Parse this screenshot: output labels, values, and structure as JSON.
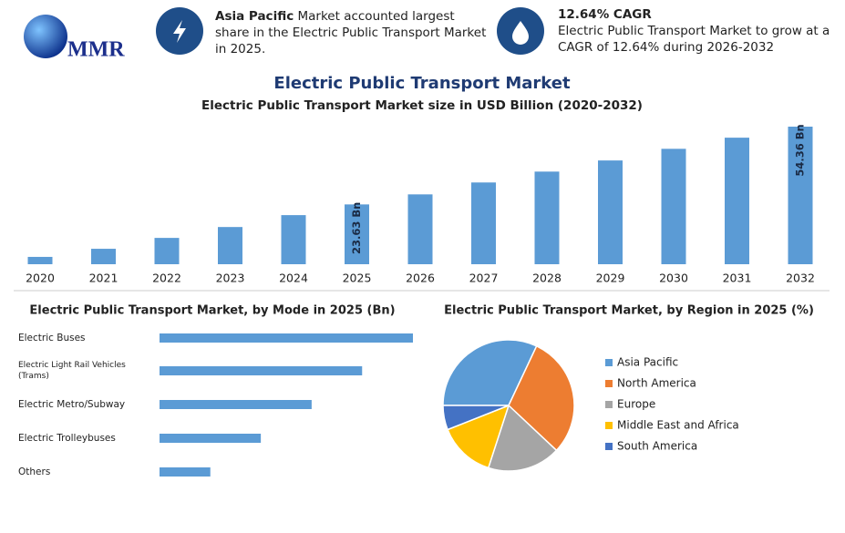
{
  "header": {
    "logo": "MMR",
    "highlight_1": {
      "bold": "Asia Pacific",
      "text": " Market accounted largest share in the Electric Public Transport Market in 2025."
    },
    "highlight_2": {
      "title": "12.64% CAGR",
      "text": "Electric Public Transport Market to grow at a CAGR of 12.64% during 2026-2032"
    }
  },
  "chart_data": [
    {
      "type": "bar",
      "title": "Electric Public Transport Market",
      "subtitle": "Electric Public Transport Market size in USD Billion (2020-2032)",
      "categories": [
        "2020",
        "2021",
        "2022",
        "2023",
        "2024",
        "2025",
        "2026",
        "2027",
        "2028",
        "2029",
        "2030",
        "2031",
        "2032"
      ],
      "values": [
        2.9,
        6.1,
        10.4,
        14.7,
        19.4,
        23.63,
        27.6,
        32.3,
        36.6,
        41.0,
        45.6,
        50.0,
        54.36
      ],
      "value_labels": [
        null,
        null,
        null,
        null,
        null,
        "23.63 Bn",
        null,
        null,
        null,
        null,
        null,
        null,
        "54.36 Bn"
      ],
      "color": "#5b9bd5"
    },
    {
      "type": "hbar",
      "title": "Electric Public Transport Market, by Mode in 2025 (Bn)",
      "categories": [
        "Electric Buses",
        "Electric Light Rail Vehicles (Trams)",
        "Electric Metro/Subway",
        "Electric Trolleybuses",
        "Others"
      ],
      "values": [
        7.88,
        6.3,
        4.73,
        3.15,
        1.58
      ],
      "color": "#5b9bd5"
    },
    {
      "type": "pie",
      "title": "Electric Public Transport Market, by Region in 2025 (%)",
      "categories": [
        "Asia Pacific",
        "North America",
        "Europe",
        "Middle East and Africa",
        "South America"
      ],
      "values": [
        32,
        30,
        18,
        14,
        6
      ],
      "colors": [
        "#5b9bd5",
        "#ed7d31",
        "#a5a5a5",
        "#ffc000",
        "#4472c4"
      ],
      "legend": "right"
    }
  ]
}
